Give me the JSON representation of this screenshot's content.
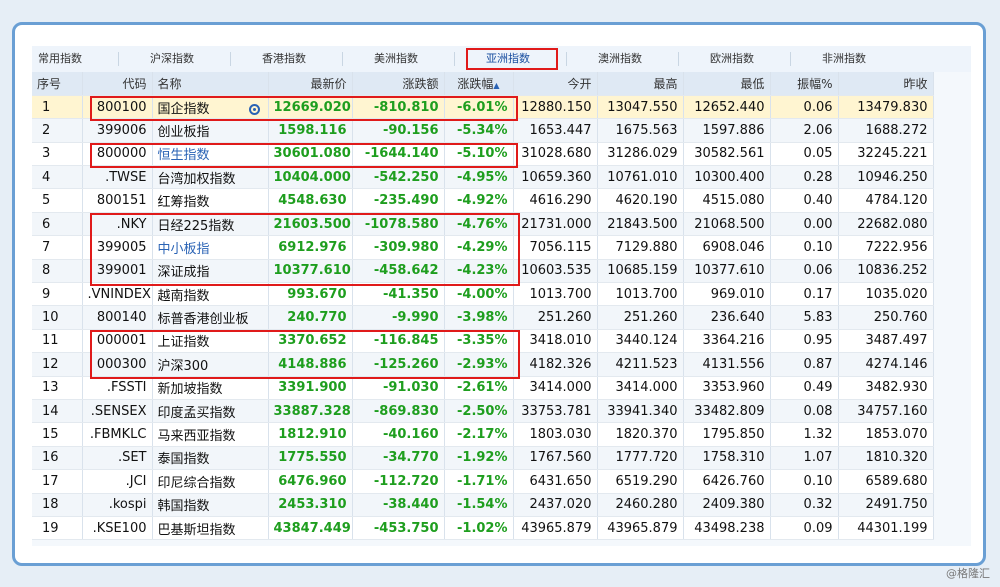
{
  "tabs": [
    {
      "label": "常用指数",
      "active": false
    },
    {
      "label": "沪深指数",
      "active": false
    },
    {
      "label": "香港指数",
      "active": false
    },
    {
      "label": "美洲指数",
      "active": false
    },
    {
      "label": "亚洲指数",
      "active": true
    },
    {
      "label": "澳洲指数",
      "active": false
    },
    {
      "label": "欧洲指数",
      "active": false
    },
    {
      "label": "非洲指数",
      "active": false
    }
  ],
  "columns": [
    "序号",
    "代码",
    "名称",
    "最新价",
    "涨跌额",
    "涨跌幅",
    "今开",
    "最高",
    "最低",
    "振幅%",
    "昨收"
  ],
  "sort_indicator": "▲",
  "rows": [
    {
      "seq": "1",
      "code": "800100",
      "name": "国企指数",
      "last": "12669.020",
      "chg": "-810.810",
      "pct": "-6.01%",
      "open": "12880.150",
      "high": "13047.550",
      "low": "12652.440",
      "amp": "0.06",
      "prev": "13479.830"
    },
    {
      "seq": "2",
      "code": "399006",
      "name": "创业板指",
      "last": "1598.116",
      "chg": "-90.156",
      "pct": "-5.34%",
      "open": "1653.447",
      "high": "1675.563",
      "low": "1597.886",
      "amp": "2.06",
      "prev": "1688.272"
    },
    {
      "seq": "3",
      "code": "800000",
      "name": "恒生指数",
      "last": "30601.080",
      "chg": "-1644.140",
      "pct": "-5.10%",
      "open": "31028.680",
      "high": "31286.029",
      "low": "30582.561",
      "amp": "0.05",
      "prev": "32245.221"
    },
    {
      "seq": "4",
      "code": ".TWSE",
      "name": "台湾加权指数",
      "last": "10404.000",
      "chg": "-542.250",
      "pct": "-4.95%",
      "open": "10659.360",
      "high": "10761.010",
      "low": "10300.400",
      "amp": "0.28",
      "prev": "10946.250"
    },
    {
      "seq": "5",
      "code": "800151",
      "name": "红筹指数",
      "last": "4548.630",
      "chg": "-235.490",
      "pct": "-4.92%",
      "open": "4616.290",
      "high": "4620.190",
      "low": "4515.080",
      "amp": "0.40",
      "prev": "4784.120"
    },
    {
      "seq": "6",
      "code": ".NKY",
      "name": "日经225指数",
      "last": "21603.500",
      "chg": "-1078.580",
      "pct": "-4.76%",
      "open": "21731.000",
      "high": "21843.500",
      "low": "21068.500",
      "amp": "0.00",
      "prev": "22682.080"
    },
    {
      "seq": "7",
      "code": "399005",
      "name": "中小板指",
      "last": "6912.976",
      "chg": "-309.980",
      "pct": "-4.29%",
      "open": "7056.115",
      "high": "7129.880",
      "low": "6908.046",
      "amp": "0.10",
      "prev": "7222.956"
    },
    {
      "seq": "8",
      "code": "399001",
      "name": "深证成指",
      "last": "10377.610",
      "chg": "-458.642",
      "pct": "-4.23%",
      "open": "10603.535",
      "high": "10685.159",
      "low": "10377.610",
      "amp": "0.06",
      "prev": "10836.252"
    },
    {
      "seq": "9",
      "code": ".VNINDEX",
      "name": "越南指数",
      "last": "993.670",
      "chg": "-41.350",
      "pct": "-4.00%",
      "open": "1013.700",
      "high": "1013.700",
      "low": "969.010",
      "amp": "0.17",
      "prev": "1035.020"
    },
    {
      "seq": "10",
      "code": "800140",
      "name": "标普香港创业板",
      "last": "240.770",
      "chg": "-9.990",
      "pct": "-3.98%",
      "open": "251.260",
      "high": "251.260",
      "low": "236.640",
      "amp": "5.83",
      "prev": "250.760"
    },
    {
      "seq": "11",
      "code": "000001",
      "name": "上证指数",
      "last": "3370.652",
      "chg": "-116.845",
      "pct": "-3.35%",
      "open": "3418.010",
      "high": "3440.124",
      "low": "3364.216",
      "amp": "0.95",
      "prev": "3487.497"
    },
    {
      "seq": "12",
      "code": "000300",
      "name": "沪深300",
      "last": "4148.886",
      "chg": "-125.260",
      "pct": "-2.93%",
      "open": "4182.326",
      "high": "4211.523",
      "low": "4131.556",
      "amp": "0.87",
      "prev": "4274.146"
    },
    {
      "seq": "13",
      "code": ".FSSTI",
      "name": "新加坡指数",
      "last": "3391.900",
      "chg": "-91.030",
      "pct": "-2.61%",
      "open": "3414.000",
      "high": "3414.000",
      "low": "3353.960",
      "amp": "0.49",
      "prev": "3482.930"
    },
    {
      "seq": "14",
      "code": ".SENSEX",
      "name": "印度孟买指数",
      "last": "33887.328",
      "chg": "-869.830",
      "pct": "-2.50%",
      "open": "33753.781",
      "high": "33941.340",
      "low": "33482.809",
      "amp": "0.08",
      "prev": "34757.160"
    },
    {
      "seq": "15",
      "code": ".FBMKLC",
      "name": "马来西亚指数",
      "last": "1812.910",
      "chg": "-40.160",
      "pct": "-2.17%",
      "open": "1803.030",
      "high": "1820.370",
      "low": "1795.850",
      "amp": "1.32",
      "prev": "1853.070"
    },
    {
      "seq": "16",
      "code": ".SET",
      "name": "泰国指数",
      "last": "1775.550",
      "chg": "-34.770",
      "pct": "-1.92%",
      "open": "1767.560",
      "high": "1777.720",
      "low": "1758.310",
      "amp": "1.07",
      "prev": "1810.320"
    },
    {
      "seq": "17",
      "code": ".JCI",
      "name": "印尼综合指数",
      "last": "6476.960",
      "chg": "-112.720",
      "pct": "-1.71%",
      "open": "6431.650",
      "high": "6519.290",
      "low": "6426.760",
      "amp": "0.10",
      "prev": "6589.680"
    },
    {
      "seq": "18",
      "code": ".kospi",
      "name": "韩国指数",
      "last": "2453.310",
      "chg": "-38.440",
      "pct": "-1.54%",
      "open": "2437.020",
      "high": "2460.280",
      "low": "2409.380",
      "amp": "0.32",
      "prev": "2491.750"
    },
    {
      "seq": "19",
      "code": ".KSE100",
      "name": "巴基斯坦指数",
      "last": "43847.449",
      "chg": "-453.750",
      "pct": "-1.02%",
      "open": "43965.879",
      "high": "43965.879",
      "low": "43498.238",
      "amp": "0.09",
      "prev": "44301.199"
    }
  ],
  "selected_row": 1,
  "blue_name_rows": [
    3,
    7
  ],
  "watermark": "格隆汇",
  "brand": "@格隆汇",
  "colors": {
    "accent": "#2a63b5",
    "down": "#1e9e1e",
    "highlight": "#e01a1a",
    "selected_row": "#fff5d1",
    "frame": "#6a9fd4"
  }
}
